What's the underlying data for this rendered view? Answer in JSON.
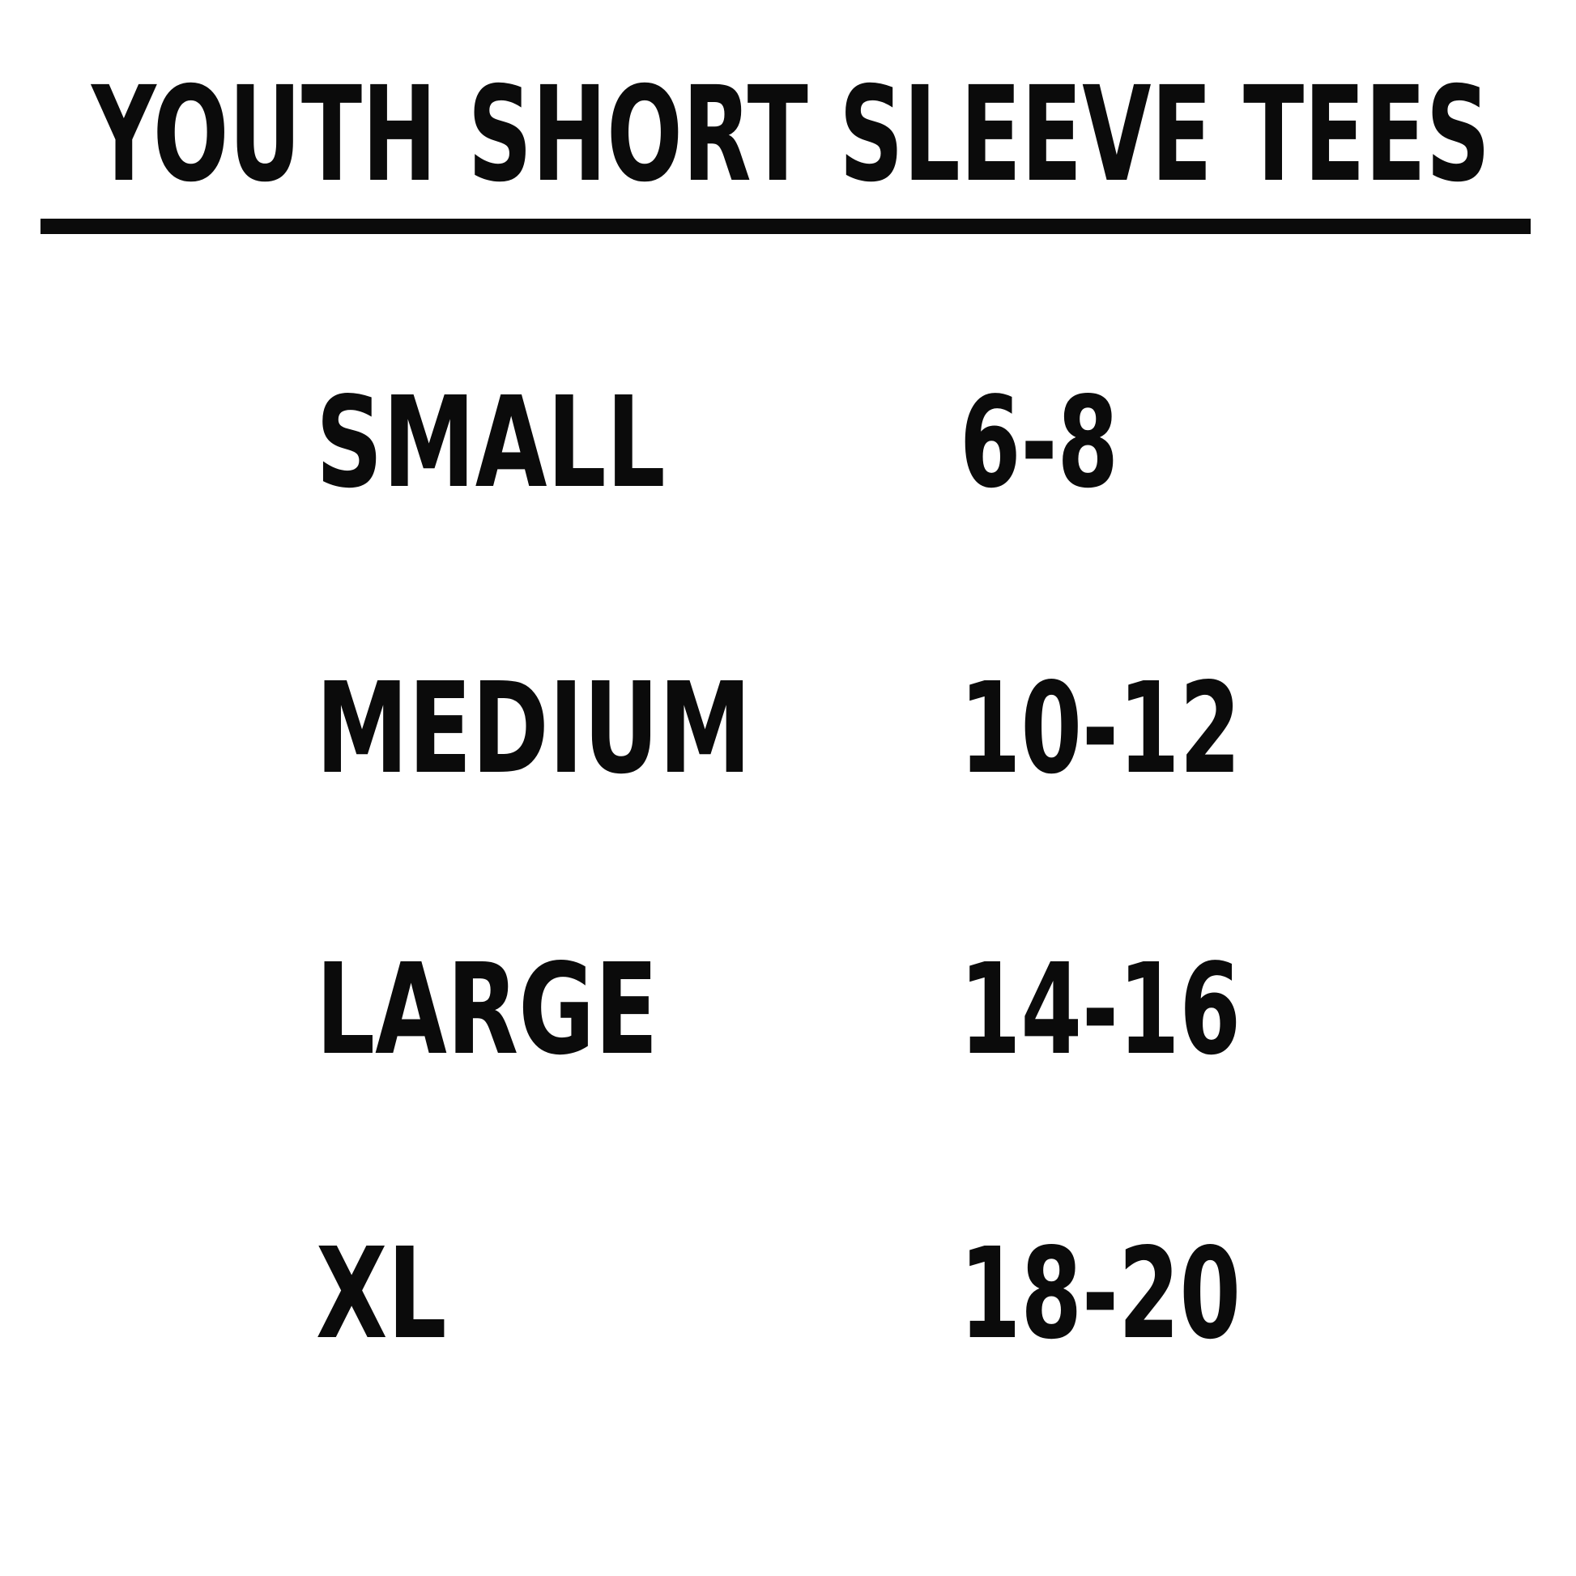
{
  "page": {
    "title": "YOUTH SHORT SLEEVE TEES"
  },
  "colors": {
    "background": "#ffffff",
    "text": "#0b0b0b",
    "rule": "#0b0b0b"
  },
  "chart_data": {
    "type": "table",
    "title": "YOUTH SHORT SLEEVE TEES",
    "columns": [
      "size",
      "youth_range"
    ],
    "rows": [
      {
        "size": "SMALL",
        "range": "6-8"
      },
      {
        "size": "MEDIUM",
        "range": "10-12"
      },
      {
        "size": "LARGE",
        "range": "14-16"
      },
      {
        "size": "XL",
        "range": "18-20"
      }
    ]
  }
}
